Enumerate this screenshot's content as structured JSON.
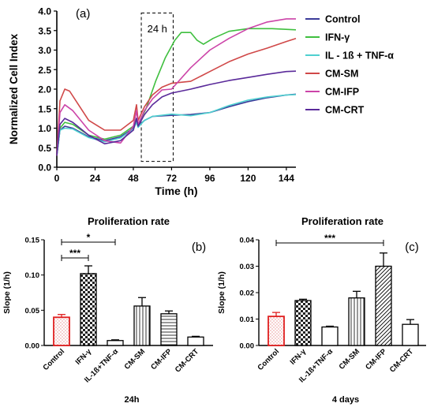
{
  "chart_data": [
    {
      "type": "line",
      "panel": "(a)",
      "xlabel": "Time (h)",
      "ylabel": "Normalized Cell Index",
      "xlim": [
        0,
        150
      ],
      "ylim": [
        0,
        4.0
      ],
      "x_ticks": [
        "0",
        "24",
        "48",
        "72",
        "96",
        "120",
        "144"
      ],
      "y_ticks": [
        "0.0",
        "0.5",
        "1.0",
        "1.5",
        "2.0",
        "2.5",
        "3.0",
        "3.5",
        "4.0"
      ],
      "annotation": "24 h",
      "annotation_window": [
        53,
        73
      ],
      "legend_position": "right",
      "grid": false,
      "series": [
        {
          "name": "Control",
          "color": "#3b3b99",
          "points": [
            [
              0,
              0.3
            ],
            [
              2,
              0.95
            ],
            [
              5,
              1.05
            ],
            [
              10,
              1.0
            ],
            [
              20,
              0.78
            ],
            [
              30,
              0.68
            ],
            [
              40,
              0.78
            ],
            [
              48,
              1.0
            ],
            [
              50,
              1.2
            ],
            [
              51,
              1.05
            ],
            [
              55,
              1.2
            ],
            [
              60,
              1.3
            ],
            [
              72,
              1.33
            ],
            [
              84,
              1.35
            ],
            [
              96,
              1.4
            ],
            [
              108,
              1.55
            ],
            [
              120,
              1.68
            ],
            [
              132,
              1.78
            ],
            [
              144,
              1.85
            ],
            [
              150,
              1.87
            ]
          ]
        },
        {
          "name": "IFN-γ",
          "color": "#3fbf3f",
          "points": [
            [
              0,
              0.3
            ],
            [
              2,
              1.0
            ],
            [
              5,
              1.15
            ],
            [
              10,
              1.1
            ],
            [
              20,
              0.82
            ],
            [
              30,
              0.72
            ],
            [
              40,
              0.82
            ],
            [
              48,
              1.05
            ],
            [
              50,
              1.25
            ],
            [
              51,
              1.1
            ],
            [
              56,
              1.5
            ],
            [
              62,
              2.2
            ],
            [
              68,
              2.8
            ],
            [
              74,
              3.25
            ],
            [
              78,
              3.45
            ],
            [
              84,
              3.45
            ],
            [
              88,
              3.25
            ],
            [
              92,
              3.15
            ],
            [
              98,
              3.3
            ],
            [
              108,
              3.48
            ],
            [
              120,
              3.55
            ],
            [
              135,
              3.55
            ],
            [
              150,
              3.52
            ]
          ]
        },
        {
          "name": "IL - 1ß + TNF-α",
          "color": "#4fd0d0",
          "points": [
            [
              0,
              0.3
            ],
            [
              2,
              0.95
            ],
            [
              5,
              1.0
            ],
            [
              10,
              0.98
            ],
            [
              20,
              0.76
            ],
            [
              30,
              0.65
            ],
            [
              40,
              0.75
            ],
            [
              48,
              0.98
            ],
            [
              50,
              1.15
            ],
            [
              51,
              1.02
            ],
            [
              55,
              1.2
            ],
            [
              60,
              1.3
            ],
            [
              72,
              1.36
            ],
            [
              84,
              1.32
            ],
            [
              96,
              1.4
            ],
            [
              108,
              1.58
            ],
            [
              120,
              1.72
            ],
            [
              132,
              1.8
            ],
            [
              144,
              1.85
            ],
            [
              150,
              1.86
            ]
          ]
        },
        {
          "name": "CM-SM",
          "color": "#d04848",
          "points": [
            [
              0,
              0.3
            ],
            [
              2,
              1.7
            ],
            [
              5,
              2.0
            ],
            [
              8,
              1.95
            ],
            [
              20,
              1.2
            ],
            [
              30,
              0.95
            ],
            [
              40,
              0.95
            ],
            [
              48,
              1.2
            ],
            [
              50,
              1.6
            ],
            [
              51,
              1.2
            ],
            [
              55,
              1.55
            ],
            [
              60,
              1.85
            ],
            [
              66,
              2.05
            ],
            [
              72,
              2.15
            ],
            [
              84,
              2.2
            ],
            [
              96,
              2.45
            ],
            [
              108,
              2.7
            ],
            [
              120,
              2.9
            ],
            [
              132,
              3.05
            ],
            [
              144,
              3.22
            ],
            [
              150,
              3.3
            ]
          ]
        },
        {
          "name": "CM-IFP",
          "color": "#cc44a8",
          "points": [
            [
              0,
              0.3
            ],
            [
              2,
              1.4
            ],
            [
              5,
              1.6
            ],
            [
              10,
              1.45
            ],
            [
              20,
              0.95
            ],
            [
              30,
              0.68
            ],
            [
              40,
              0.62
            ],
            [
              48,
              1.05
            ],
            [
              50,
              1.45
            ],
            [
              51,
              1.1
            ],
            [
              55,
              1.45
            ],
            [
              60,
              1.75
            ],
            [
              66,
              1.98
            ],
            [
              72,
              2.0
            ],
            [
              84,
              2.55
            ],
            [
              96,
              3.0
            ],
            [
              108,
              3.3
            ],
            [
              120,
              3.55
            ],
            [
              132,
              3.72
            ],
            [
              144,
              3.8
            ],
            [
              150,
              3.8
            ]
          ]
        },
        {
          "name": "CM-CRT",
          "color": "#5a2a9a",
          "points": [
            [
              0,
              0.3
            ],
            [
              2,
              1.1
            ],
            [
              5,
              1.25
            ],
            [
              10,
              1.15
            ],
            [
              20,
              0.82
            ],
            [
              30,
              0.6
            ],
            [
              40,
              0.68
            ],
            [
              48,
              0.95
            ],
            [
              50,
              1.25
            ],
            [
              51,
              1.05
            ],
            [
              55,
              1.35
            ],
            [
              60,
              1.6
            ],
            [
              66,
              1.8
            ],
            [
              72,
              1.9
            ],
            [
              84,
              2.0
            ],
            [
              96,
              2.12
            ],
            [
              108,
              2.22
            ],
            [
              120,
              2.3
            ],
            [
              132,
              2.38
            ],
            [
              144,
              2.45
            ],
            [
              150,
              2.46
            ]
          ]
        }
      ]
    },
    {
      "type": "bar",
      "panel": "(b)",
      "title": "Proliferation rate",
      "ylabel": "Slope (1/h)",
      "xlabel": "24h",
      "ylim": [
        0,
        0.15
      ],
      "y_ticks": [
        "0.00",
        "0.05",
        "0.10",
        "0.15"
      ],
      "categories": [
        "Control",
        "IFN-γ",
        "IL-1ß+TNF-α",
        "CM-SM",
        "CM-IFP",
        "CM-CRT"
      ],
      "values": [
        0.04,
        0.102,
        0.007,
        0.056,
        0.045,
        0.012
      ],
      "errors": [
        0.004,
        0.011,
        0.001,
        0.012,
        0.004,
        0.001
      ],
      "patterns": [
        "dots-red",
        "checker",
        "plain",
        "vlines",
        "hlines",
        "plain"
      ],
      "significance": [
        {
          "from": 0,
          "to": 2,
          "label": "*"
        },
        {
          "from": 0,
          "to": 1,
          "label": "***"
        }
      ]
    },
    {
      "type": "bar",
      "panel": "(c)",
      "title": "Proliferation rate",
      "ylabel": "Slope (1/h)",
      "xlabel": "4 days",
      "ylim": [
        0,
        0.04
      ],
      "y_ticks": [
        "0.00",
        "0.01",
        "0.02",
        "0.03",
        "0.04"
      ],
      "categories": [
        "Control",
        "IFN-γ",
        "IL-1ß+TNF-α",
        "CM-SM",
        "CM-IFP",
        "CM-CRT"
      ],
      "values": [
        0.011,
        0.017,
        0.007,
        0.018,
        0.03,
        0.008
      ],
      "errors": [
        0.0015,
        0.0005,
        0.0003,
        0.0025,
        0.005,
        0.0018
      ],
      "patterns": [
        "dots-red",
        "checker",
        "plain",
        "vlines",
        "diag",
        "plain"
      ],
      "significance": [
        {
          "from": 0,
          "to": 4,
          "label": "***"
        }
      ]
    }
  ]
}
